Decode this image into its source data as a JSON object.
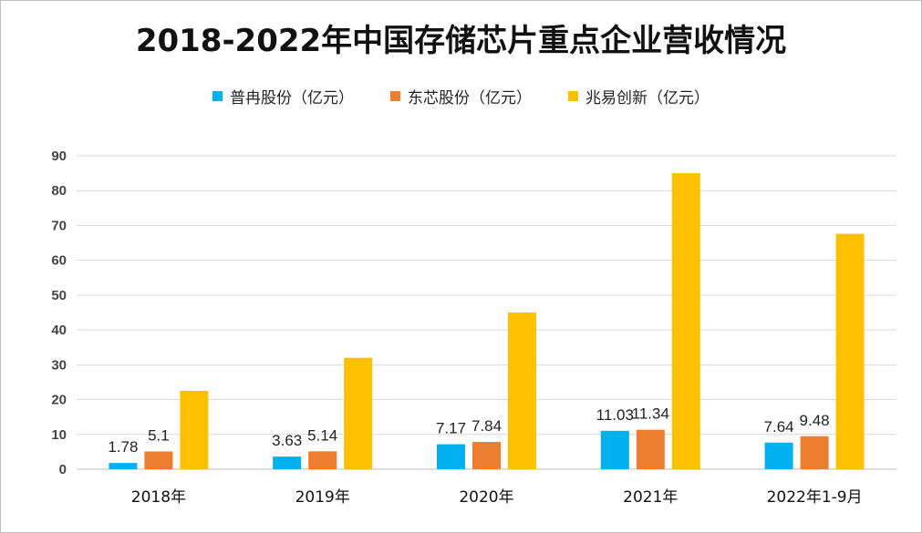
{
  "chart_data": {
    "type": "bar",
    "title": "2018-2022年中国存储芯片重点企业营收情况",
    "categories": [
      "2018年",
      "2019年",
      "2020年",
      "2021年",
      "2022年1-9月"
    ],
    "ylim": [
      0,
      90
    ],
    "yticks": [
      "0",
      "10",
      "20",
      "30",
      "40",
      "50",
      "60",
      "70",
      "80",
      "90"
    ],
    "grid": true,
    "legend_position": "top",
    "series": [
      {
        "name": "普冉股份（亿元）",
        "color": "#00b0f0",
        "values": [
          1.78,
          3.63,
          7.17,
          11.03,
          7.64
        ],
        "labels": [
          "1.78",
          "3.63",
          "7.17",
          "11.03",
          "7.64"
        ]
      },
      {
        "name": "东芯股份（亿元）",
        "color": "#ed7d31",
        "values": [
          5.1,
          5.14,
          7.84,
          11.34,
          9.48
        ],
        "labels": [
          "5.1",
          "5.14",
          "7.84",
          "11.34",
          "9.48"
        ]
      },
      {
        "name": "兆易创新（亿元）",
        "color": "#ffc000",
        "values": [
          22.5,
          32.0,
          45.0,
          85.0,
          67.6
        ],
        "labels": []
      }
    ]
  }
}
